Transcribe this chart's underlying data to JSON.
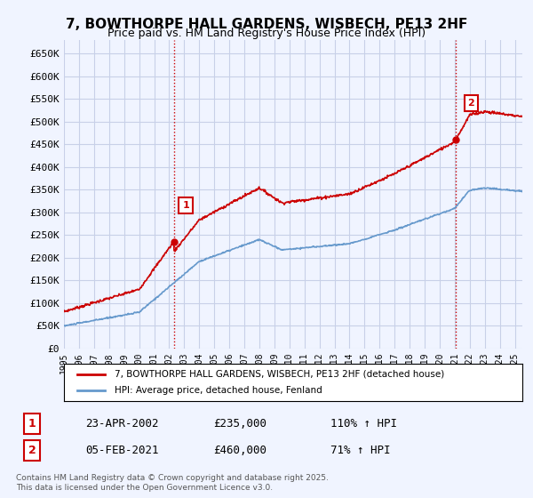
{
  "title": "7, BOWTHORPE HALL GARDENS, WISBECH, PE13 2HF",
  "subtitle": "Price paid vs. HM Land Registry's House Price Index (HPI)",
  "ylabel_ticks": [
    "£0",
    "£50K",
    "£100K",
    "£150K",
    "£200K",
    "£250K",
    "£300K",
    "£350K",
    "£400K",
    "£450K",
    "£500K",
    "£550K",
    "£600K",
    "£650K"
  ],
  "ytick_values": [
    0,
    50000,
    100000,
    150000,
    200000,
    250000,
    300000,
    350000,
    400000,
    450000,
    500000,
    550000,
    600000,
    650000
  ],
  "ylim": [
    0,
    680000
  ],
  "xlim_start": 1995.0,
  "xlim_end": 2025.5,
  "background_color": "#f0f4ff",
  "plot_bg_color": "#f0f4ff",
  "grid_color": "#c8d0e8",
  "sale1_date": 2002.31,
  "sale1_price": 235000,
  "sale2_date": 2021.09,
  "sale2_price": 460000,
  "property_line_color": "#cc0000",
  "hpi_line_color": "#6699cc",
  "vline_color": "#cc0000",
  "legend_property": "7, BOWTHORPE HALL GARDENS, WISBECH, PE13 2HF (detached house)",
  "legend_hpi": "HPI: Average price, detached house, Fenland",
  "annotation1_date": "23-APR-2002",
  "annotation1_price": "£235,000",
  "annotation1_hpi": "110% ↑ HPI",
  "annotation2_date": "05-FEB-2021",
  "annotation2_price": "£460,000",
  "annotation2_hpi": "71% ↑ HPI",
  "footer": "Contains HM Land Registry data © Crown copyright and database right 2025.\nThis data is licensed under the Open Government Licence v3.0.",
  "xtick_years": [
    1995,
    1996,
    1997,
    1998,
    1999,
    2000,
    2001,
    2002,
    2003,
    2004,
    2005,
    2006,
    2007,
    2008,
    2009,
    2010,
    2011,
    2012,
    2013,
    2014,
    2015,
    2016,
    2017,
    2018,
    2019,
    2020,
    2021,
    2022,
    2023,
    2024,
    2025
  ]
}
